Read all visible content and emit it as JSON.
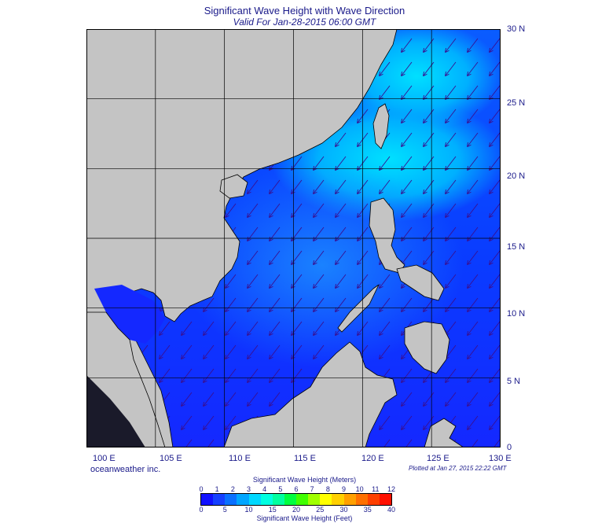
{
  "title": "Significant Wave Height with Wave Direction",
  "subtitle": "Valid For Jan-28-2015 06:00 GMT",
  "credit": "oceanweather inc.",
  "plotted": "Plotted at Jan 27, 2015 22:22 GMT",
  "latitude_labels": [
    "30 N",
    "25 N",
    "20 N",
    "15 N",
    "10 N",
    "5 N",
    "0"
  ],
  "longitude_labels": [
    "100 E",
    "105 E",
    "110 E",
    "115 E",
    "120 E",
    "125 E",
    "130 E"
  ],
  "scale": {
    "meters_title": "Significant Wave Height (Meters)",
    "feet_title": "Significant Wave Height (Feet)",
    "meters_ticks": [
      "0",
      "1",
      "2",
      "3",
      "4",
      "5",
      "6",
      "7",
      "8",
      "9",
      "10",
      "11",
      "12"
    ],
    "feet_ticks": [
      "0",
      "5",
      "10",
      "15",
      "20",
      "25",
      "30",
      "35",
      "40"
    ],
    "colors": [
      "#1010ff",
      "#1540ff",
      "#0a70ff",
      "#00a5ff",
      "#00d8ff",
      "#00ffe0",
      "#00ffa0",
      "#00ff40",
      "#40ff00",
      "#a0ff00",
      "#ffff00",
      "#ffd000",
      "#ffa000",
      "#ff7000",
      "#ff4000",
      "#ff1000"
    ]
  },
  "colors": {
    "land": "#c4c4c4",
    "ocean_low": "#1428ff",
    "ocean_mid": "#0a5cff",
    "ocean_high": "#00c8ff",
    "arrow": "#3a0f8f",
    "grid": "#000000"
  },
  "map_extent": {
    "lon_min": 100,
    "lon_max": 130,
    "lat_min": 0,
    "lat_max": 30
  },
  "wave_direction": "northeast to southwest"
}
